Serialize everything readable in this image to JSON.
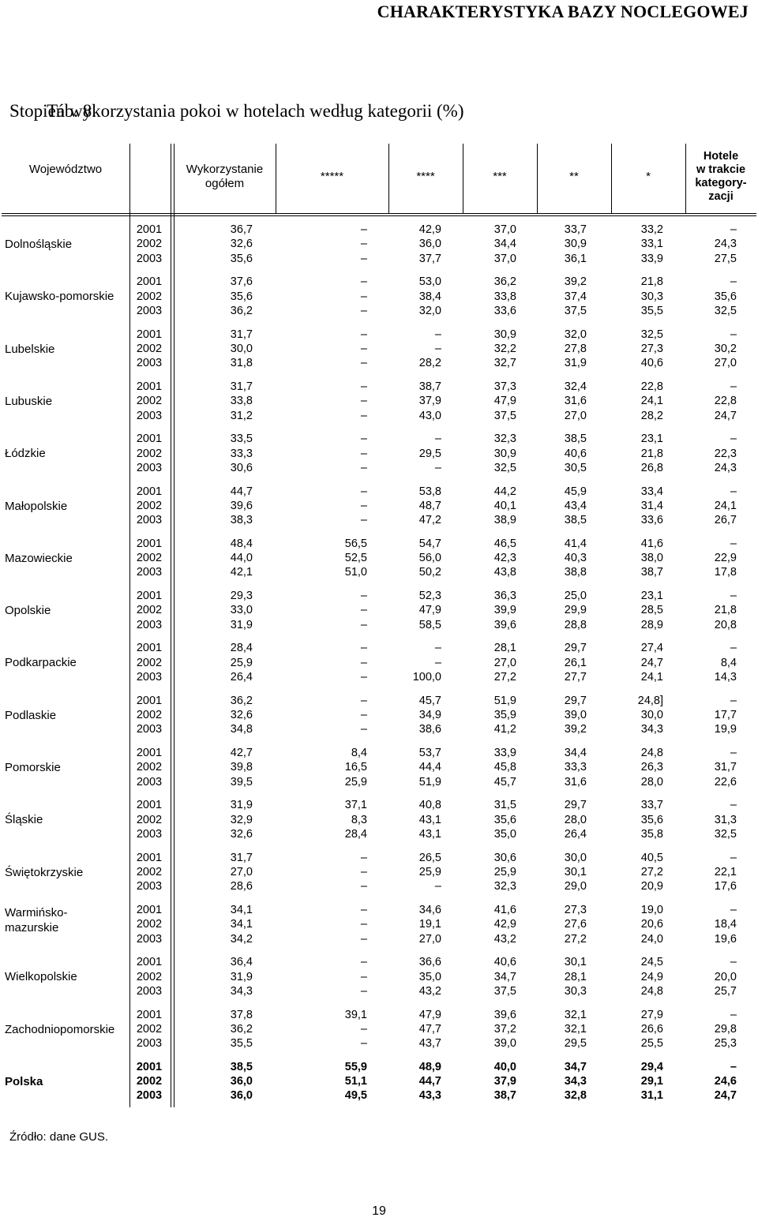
{
  "header": {
    "title": "CHARAKTERYSTYKA BAZY NOCLEGOWEJ"
  },
  "table": {
    "number": "Tab. 8.",
    "caption": "Stopień wykorzystania pokoi w hotelach według kategorii (%)",
    "columns": [
      "Województwo",
      "Wykorzystanie ogółem",
      "*****",
      "****",
      "***",
      "**",
      "*",
      "Hotele w trakcie kategory-zacji"
    ],
    "column_header_lines": {
      "voivodeship": [
        "Województwo"
      ],
      "total": [
        "Wykorzystanie",
        "ogółem"
      ],
      "s5": [
        "*****"
      ],
      "s4": [
        "****"
      ],
      "s3": [
        "***"
      ],
      "s2": [
        "**"
      ],
      "s1": [
        "*"
      ],
      "pending": [
        "Hotele",
        "w trakcie",
        "kategory-",
        "zacji"
      ]
    },
    "years": [
      "2001",
      "2002",
      "2003"
    ],
    "rows": [
      {
        "name": [
          "Dolnośląskie"
        ],
        "bold": false,
        "values": [
          [
            "36,7",
            "–",
            "42,9",
            "37,0",
            "33,7",
            "33,2",
            "–"
          ],
          [
            "32,6",
            "–",
            "36,0",
            "34,4",
            "30,9",
            "33,1",
            "24,3"
          ],
          [
            "35,6",
            "–",
            "37,7",
            "37,0",
            "36,1",
            "33,9",
            "27,5"
          ]
        ]
      },
      {
        "name": [
          "Kujawsko-pomorskie"
        ],
        "bold": false,
        "values": [
          [
            "37,6",
            "–",
            "53,0",
            "36,2",
            "39,2",
            "21,8",
            "–"
          ],
          [
            "35,6",
            "–",
            "38,4",
            "33,8",
            "37,4",
            "30,3",
            "35,6"
          ],
          [
            "36,2",
            "–",
            "32,0",
            "33,6",
            "37,5",
            "35,5",
            "32,5"
          ]
        ]
      },
      {
        "name": [
          "Lubelskie"
        ],
        "bold": false,
        "values": [
          [
            "31,7",
            "–",
            "–",
            "30,9",
            "32,0",
            "32,5",
            "–"
          ],
          [
            "30,0",
            "–",
            "–",
            "32,2",
            "27,8",
            "27,3",
            "30,2"
          ],
          [
            "31,8",
            "–",
            "28,2",
            "32,7",
            "31,9",
            "40,6",
            "27,0"
          ]
        ]
      },
      {
        "name": [
          "Lubuskie"
        ],
        "bold": false,
        "values": [
          [
            "31,7",
            "–",
            "38,7",
            "37,3",
            "32,4",
            "22,8",
            "–"
          ],
          [
            "33,8",
            "–",
            "37,9",
            "47,9",
            "31,6",
            "24,1",
            "22,8"
          ],
          [
            "31,2",
            "–",
            "43,0",
            "37,5",
            "27,0",
            "28,2",
            "24,7"
          ]
        ]
      },
      {
        "name": [
          "Łódzkie"
        ],
        "bold": false,
        "values": [
          [
            "33,5",
            "–",
            "–",
            "32,3",
            "38,5",
            "23,1",
            "–"
          ],
          [
            "33,3",
            "–",
            "29,5",
            "30,9",
            "40,6",
            "21,8",
            "22,3"
          ],
          [
            "30,6",
            "–",
            "–",
            "32,5",
            "30,5",
            "26,8",
            "24,3"
          ]
        ]
      },
      {
        "name": [
          "Małopolskie"
        ],
        "bold": false,
        "values": [
          [
            "44,7",
            "–",
            "53,8",
            "44,2",
            "45,9",
            "33,4",
            "–"
          ],
          [
            "39,6",
            "–",
            "48,7",
            "40,1",
            "43,4",
            "31,4",
            "24,1"
          ],
          [
            "38,3",
            "–",
            "47,2",
            "38,9",
            "38,5",
            "33,6",
            "26,7"
          ]
        ]
      },
      {
        "name": [
          "Mazowieckie"
        ],
        "bold": false,
        "values": [
          [
            "48,4",
            "56,5",
            "54,7",
            "46,5",
            "41,4",
            "41,6",
            "–"
          ],
          [
            "44,0",
            "52,5",
            "56,0",
            "42,3",
            "40,3",
            "38,0",
            "22,9"
          ],
          [
            "42,1",
            "51,0",
            "50,2",
            "43,8",
            "38,8",
            "38,7",
            "17,8"
          ]
        ]
      },
      {
        "name": [
          "Opolskie"
        ],
        "bold": false,
        "values": [
          [
            "29,3",
            "–",
            "52,3",
            "36,3",
            "25,0",
            "23,1",
            "–"
          ],
          [
            "33,0",
            "–",
            "47,9",
            "39,9",
            "29,9",
            "28,5",
            "21,8"
          ],
          [
            "31,9",
            "–",
            "58,5",
            "39,6",
            "28,8",
            "28,9",
            "20,8"
          ]
        ]
      },
      {
        "name": [
          "Podkarpackie"
        ],
        "bold": false,
        "values": [
          [
            "28,4",
            "–",
            "–",
            "28,1",
            "29,7",
            "27,4",
            "–"
          ],
          [
            "25,9",
            "–",
            "–",
            "27,0",
            "26,1",
            "24,7",
            "8,4"
          ],
          [
            "26,4",
            "–",
            "100,0",
            "27,2",
            "27,7",
            "24,1",
            "14,3"
          ]
        ]
      },
      {
        "name": [
          "Podlaskie"
        ],
        "bold": false,
        "values": [
          [
            "36,2",
            "–",
            "45,7",
            "51,9",
            "29,7",
            "24,8]",
            "–"
          ],
          [
            "32,6",
            "–",
            "34,9",
            "35,9",
            "39,0",
            "30,0",
            "17,7"
          ],
          [
            "34,8",
            "–",
            "38,6",
            "41,2",
            "39,2",
            "34,3",
            "19,9"
          ]
        ]
      },
      {
        "name": [
          "Pomorskie"
        ],
        "bold": false,
        "values": [
          [
            "42,7",
            "8,4",
            "53,7",
            "33,9",
            "34,4",
            "24,8",
            "–"
          ],
          [
            "39,8",
            "16,5",
            "44,4",
            "45,8",
            "33,3",
            "26,3",
            "31,7"
          ],
          [
            "39,5",
            "25,9",
            "51,9",
            "45,7",
            "31,6",
            "28,0",
            "22,6"
          ]
        ]
      },
      {
        "name": [
          "Śląskie"
        ],
        "bold": false,
        "values": [
          [
            "31,9",
            "37,1",
            "40,8",
            "31,5",
            "29,7",
            "33,7",
            "–"
          ],
          [
            "32,9",
            "8,3",
            "43,1",
            "35,6",
            "28,0",
            "35,6",
            "31,3"
          ],
          [
            "32,6",
            "28,4",
            "43,1",
            "35,0",
            "26,4",
            "35,8",
            "32,5"
          ]
        ]
      },
      {
        "name": [
          "Świętokrzyskie"
        ],
        "bold": false,
        "values": [
          [
            "31,7",
            "–",
            "26,5",
            "30,6",
            "30,0",
            "40,5",
            "–"
          ],
          [
            "27,0",
            "–",
            "25,9",
            "25,9",
            "30,1",
            "27,2",
            "22,1"
          ],
          [
            "28,6",
            "–",
            "–",
            "32,3",
            "29,0",
            "20,9",
            "17,6"
          ]
        ]
      },
      {
        "name": [
          "Warmińsko-",
          "mazurskie"
        ],
        "bold": false,
        "values": [
          [
            "34,1",
            "–",
            "34,6",
            "41,6",
            "27,3",
            "19,0",
            "–"
          ],
          [
            "34,1",
            "–",
            "19,1",
            "42,9",
            "27,6",
            "20,6",
            "18,4"
          ],
          [
            "34,2",
            "–",
            "27,0",
            "43,2",
            "27,2",
            "24,0",
            "19,6"
          ]
        ]
      },
      {
        "name": [
          "Wielkopolskie"
        ],
        "bold": false,
        "values": [
          [
            "36,4",
            "–",
            "36,6",
            "40,6",
            "30,1",
            "24,5",
            "–"
          ],
          [
            "31,9",
            "–",
            "35,0",
            "34,7",
            "28,1",
            "24,9",
            "20,0"
          ],
          [
            "34,3",
            "–",
            "43,2",
            "37,5",
            "30,3",
            "24,8",
            "25,7"
          ]
        ]
      },
      {
        "name": [
          "Zachodniopomorskie"
        ],
        "bold": false,
        "values": [
          [
            "37,8",
            "39,1",
            "47,9",
            "39,6",
            "32,1",
            "27,9",
            "–"
          ],
          [
            "36,2",
            "–",
            "47,7",
            "37,2",
            "32,1",
            "26,6",
            "29,8"
          ],
          [
            "35,5",
            "–",
            "43,7",
            "39,0",
            "29,5",
            "25,5",
            "25,3"
          ]
        ]
      },
      {
        "name": [
          "Polska"
        ],
        "bold": true,
        "values": [
          [
            "38,5",
            "55,9",
            "48,9",
            "40,0",
            "34,7",
            "29,4",
            "–"
          ],
          [
            "36,0",
            "51,1",
            "44,7",
            "37,9",
            "34,3",
            "29,1",
            "24,6"
          ],
          [
            "36,0",
            "49,5",
            "43,3",
            "38,7",
            "32,8",
            "31,1",
            "24,7"
          ]
        ]
      }
    ]
  },
  "source": "Źródło: dane GUS.",
  "page_number": "19"
}
